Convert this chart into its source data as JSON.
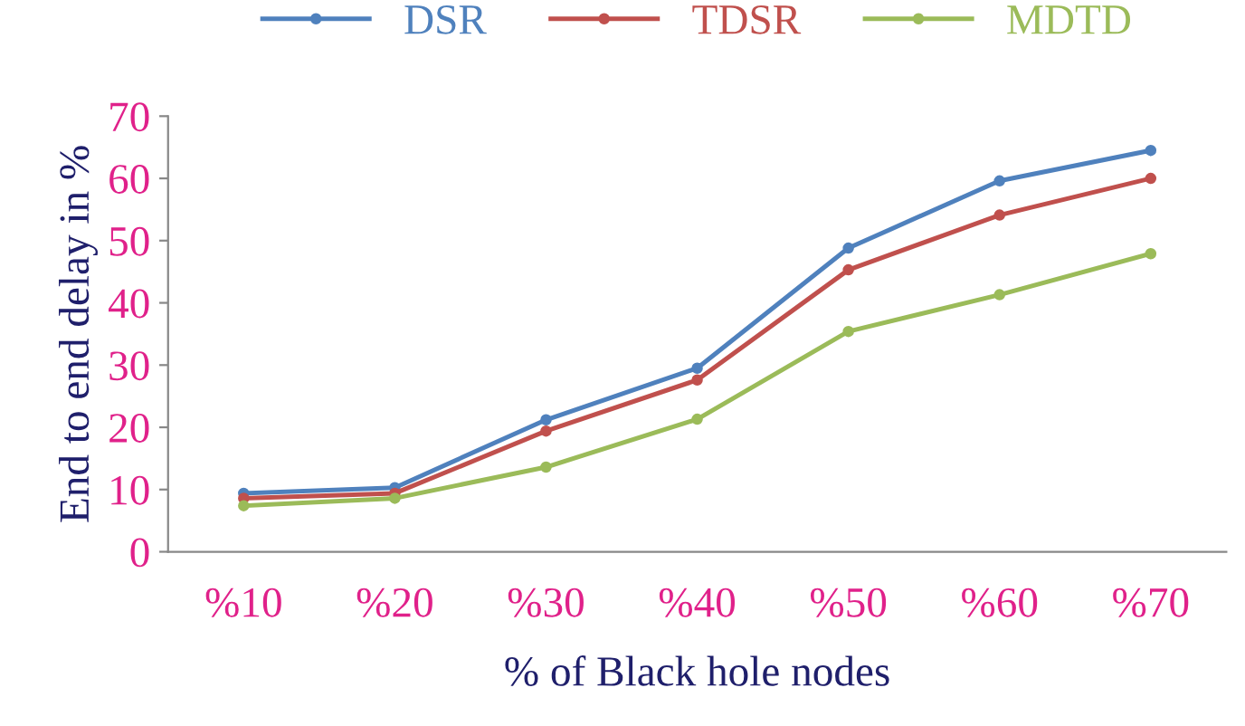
{
  "chart_data": {
    "type": "line",
    "xlabel": "% of Black hole nodes",
    "ylabel": "End to end delay in %",
    "categories": [
      "%10",
      "%20",
      "%30",
      "%40",
      "%50",
      "%60",
      "%70"
    ],
    "series": [
      {
        "name": "DSR",
        "color": "#4f81bd",
        "values": [
          9.4,
          10.3,
          21.2,
          29.5,
          48.8,
          59.6,
          64.5
        ]
      },
      {
        "name": "TDSR",
        "color": "#c0504d",
        "values": [
          8.6,
          9.4,
          19.4,
          27.6,
          45.3,
          54.1,
          60
        ]
      },
      {
        "name": "MDTD",
        "color": "#9bbb59",
        "values": [
          7.4,
          8.6,
          13.6,
          21.3,
          35.4,
          41.3,
          47.9
        ]
      }
    ],
    "ylim": [
      0,
      70
    ],
    "yticks": [
      0,
      10,
      20,
      30,
      40,
      50,
      60,
      70
    ],
    "grid": false,
    "legend": "top",
    "marker": "circle",
    "line_style": "solid"
  }
}
